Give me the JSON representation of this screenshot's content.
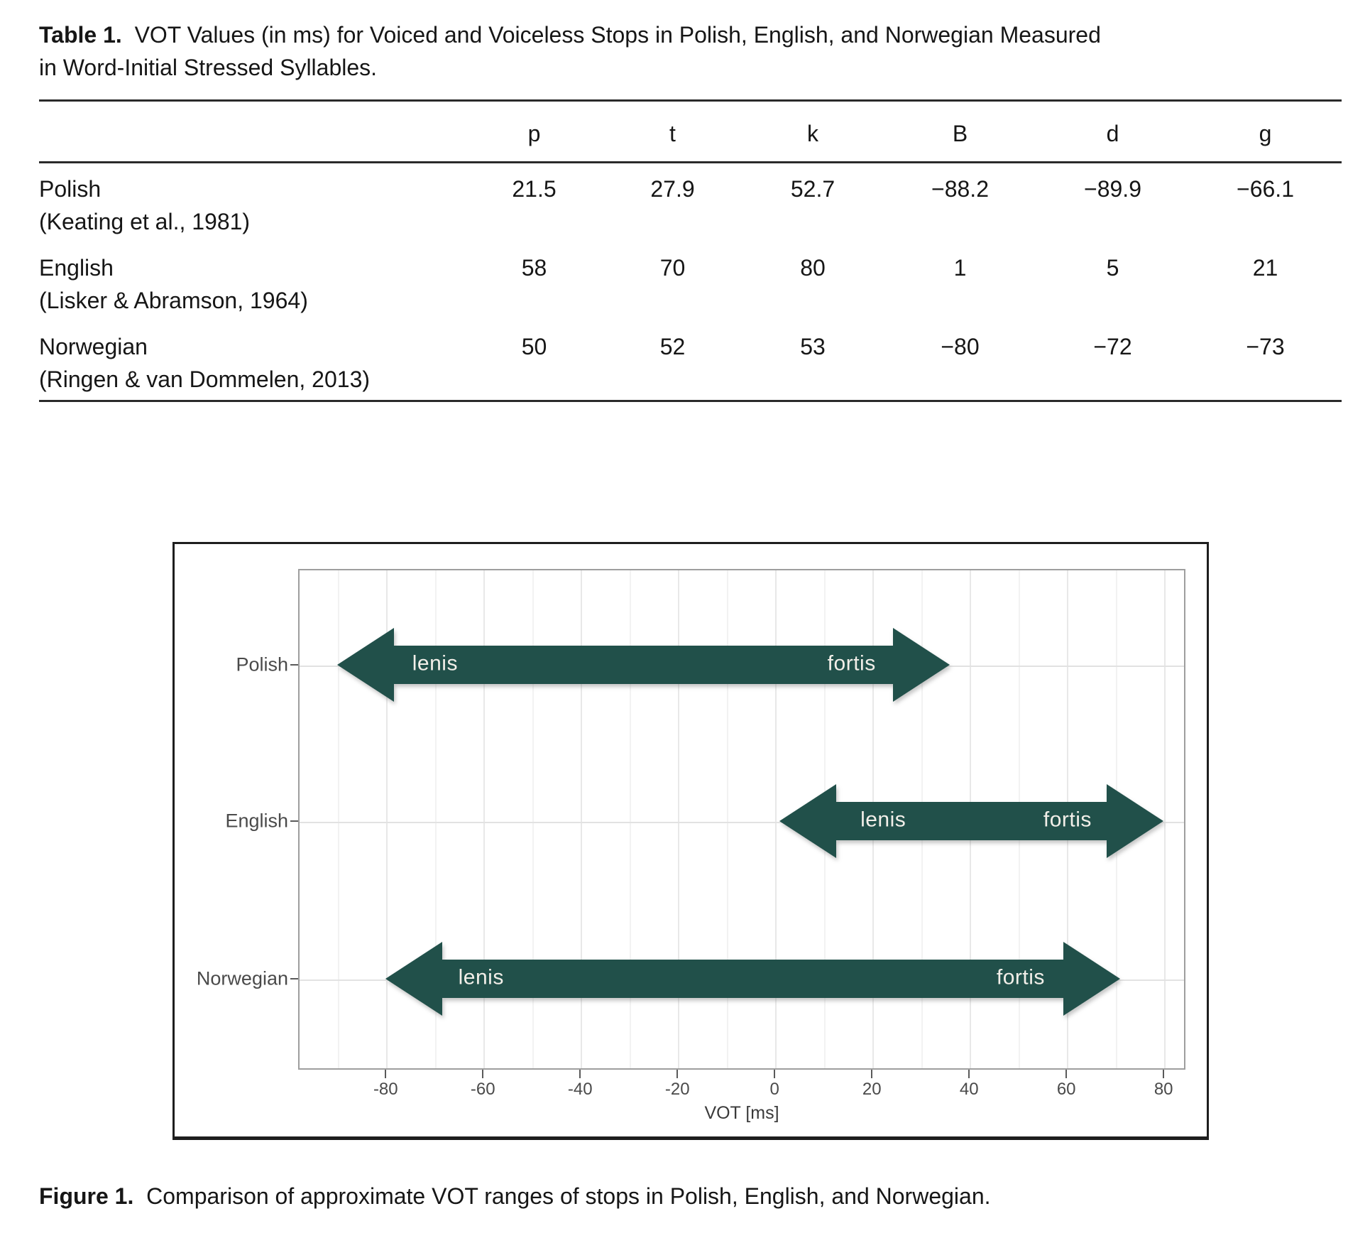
{
  "table": {
    "label": "Table 1.",
    "title_line1": "VOT Values (in ms) for Voiced and Voiceless Stops in Polish, English, and Norwegian Measured",
    "title_line2": "in Word-Initial Stressed Syllables.",
    "columns": [
      "p",
      "t",
      "k",
      "B",
      "d",
      "g"
    ],
    "rows": [
      {
        "language": "Polish",
        "source": "(Keating et al., 1981)",
        "values": [
          "21.5",
          "27.9",
          "52.7",
          "−88.2",
          "−89.9",
          "−66.1"
        ]
      },
      {
        "language": "English",
        "source": "(Lisker & Abramson, 1964)",
        "values": [
          "58",
          "70",
          "80",
          "1",
          "5",
          "21"
        ]
      },
      {
        "language": "Norwegian",
        "source": "(Ringen & van Dommelen, 2013)",
        "values": [
          "50",
          "52",
          "53",
          "−80",
          "−72",
          "−73"
        ]
      }
    ]
  },
  "figure": {
    "caption_label": "Figure 1.",
    "caption_text": "Comparison of approximate VOT ranges of stops in Polish, English, and Norwegian."
  },
  "chart_data": {
    "type": "range-arrows",
    "title": "",
    "xlabel": "VOT [ms]",
    "xlim": [
      -98,
      84.5
    ],
    "xticks": [
      -80,
      -60,
      -40,
      -20,
      0,
      20,
      40,
      60,
      80
    ],
    "x_minor_step": 10,
    "grid": true,
    "legend_position": "none",
    "categories": [
      "Polish",
      "English",
      "Norwegian"
    ],
    "series": [
      {
        "category": "Polish",
        "range_ms": [
          -90,
          36
        ],
        "left_label": "lenis",
        "right_label": "fortis",
        "left_label_frac": 0.16,
        "right_label_frac": 0.84
      },
      {
        "category": "English",
        "range_ms": [
          1,
          80
        ],
        "left_label": "lenis",
        "right_label": "fortis",
        "left_label_frac": 0.27,
        "right_label_frac": 0.75
      },
      {
        "category": "Norwegian",
        "range_ms": [
          -80,
          71
        ],
        "left_label": "lenis",
        "right_label": "fortis",
        "left_label_frac": 0.13,
        "right_label_frac": 0.865
      }
    ],
    "arrow_color": "#21504a",
    "arrow_label_color": "#f2efe9"
  }
}
